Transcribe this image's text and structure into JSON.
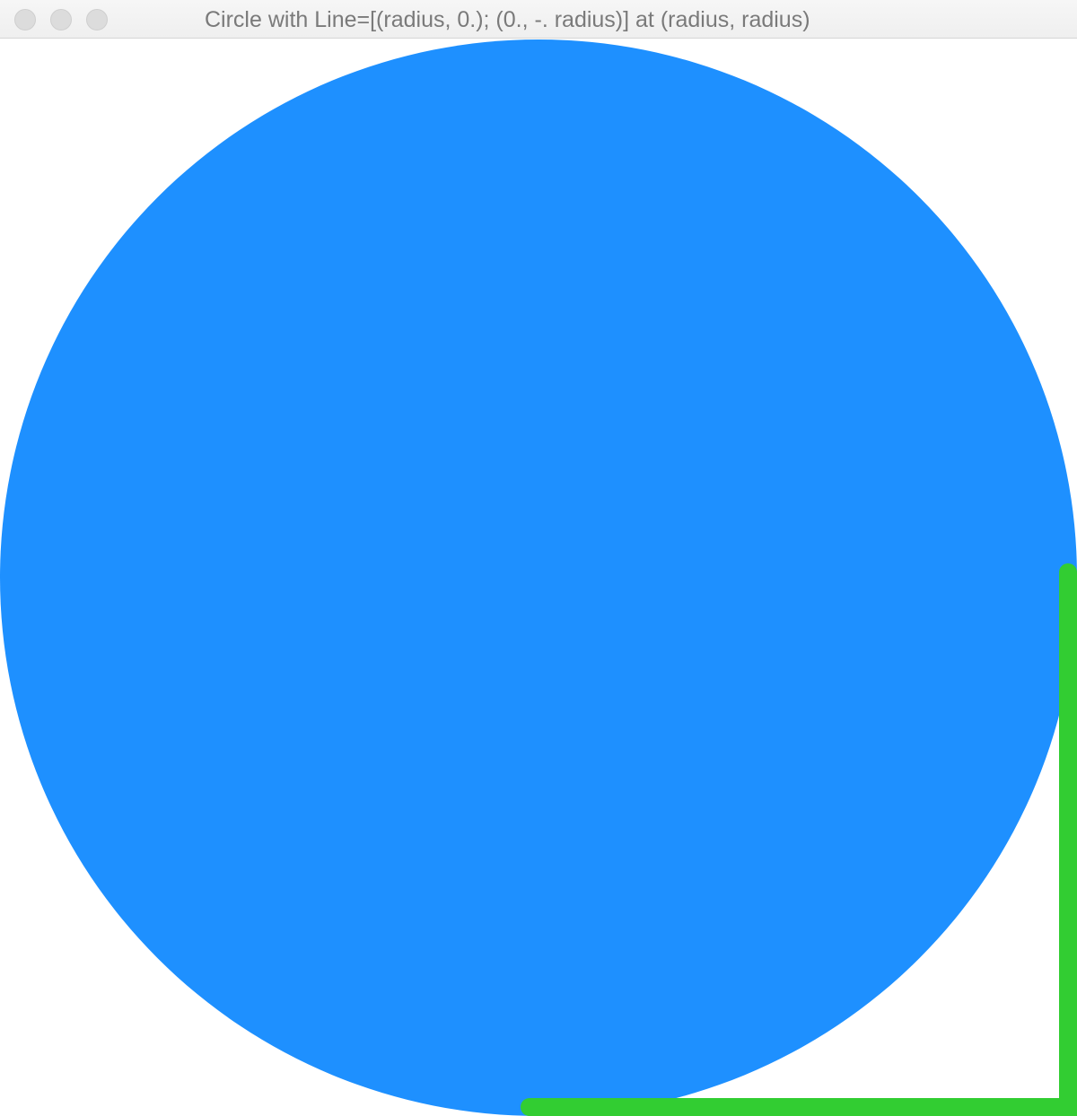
{
  "window": {
    "title": "Circle with Line=[(radius, 0.); (0., -. radius)] at (radius, radius)",
    "buttons": {
      "close": "close-button",
      "minimize": "minimize-button",
      "zoom": "zoom-button"
    }
  },
  "scene": {
    "circle": {
      "fill": "#1e90ff"
    },
    "line": {
      "stroke": "#32cd32"
    },
    "background": "#ffffff"
  }
}
